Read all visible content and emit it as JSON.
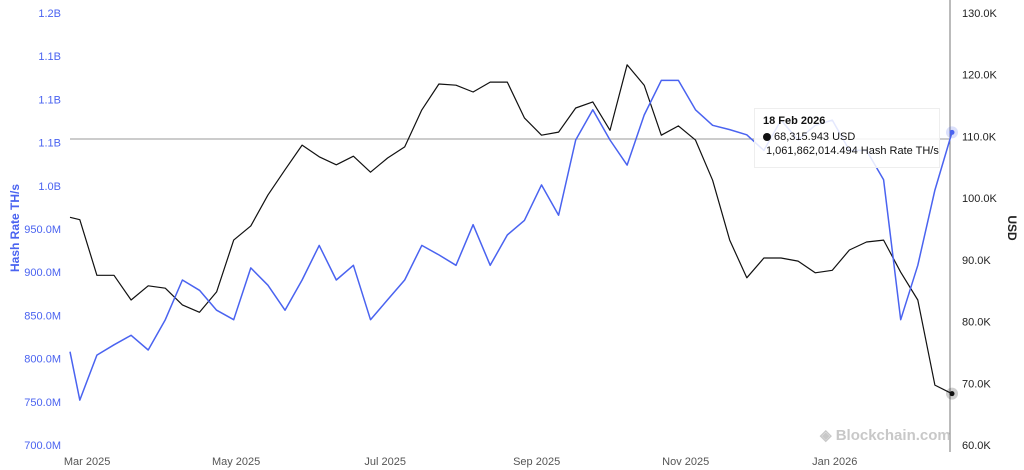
{
  "chart_data": {
    "type": "line",
    "xlabel": "",
    "ylabel_left": "Hash Rate TH/s",
    "ylabel_right": "USD",
    "x_ticks": [
      "Mar 2025",
      "May 2025",
      "Jul 2025",
      "Sep 2025",
      "Nov 2025",
      "Jan 2026"
    ],
    "y_left_ticks": [
      "700.0M",
      "750.0M",
      "800.0M",
      "850.0M",
      "900.0M",
      "950.0M",
      "1.0B",
      "1.1B",
      "1.1B",
      "1.1B",
      "1.2B"
    ],
    "y_left_range": [
      700000000,
      1200000000
    ],
    "y_right_ticks": [
      "60.0K",
      "70.0K",
      "80.0K",
      "90.0K",
      "100.0K",
      "110.0K",
      "120.0K",
      "130.0K"
    ],
    "y_right_range": [
      60000,
      130000
    ],
    "x_range": [
      "2025-02-22",
      "2026-02-18"
    ],
    "grid": false,
    "legend": "none",
    "series": [
      {
        "key": "price",
        "axis": "right",
        "color": "#111111",
        "x": [
          "2025-02-22",
          "2025-02-26",
          "2025-03-05",
          "2025-03-12",
          "2025-03-19",
          "2025-03-26",
          "2025-04-02",
          "2025-04-09",
          "2025-04-16",
          "2025-04-23",
          "2025-04-30",
          "2025-05-07",
          "2025-05-14",
          "2025-05-21",
          "2025-05-28",
          "2025-06-04",
          "2025-06-11",
          "2025-06-18",
          "2025-06-25",
          "2025-07-02",
          "2025-07-09",
          "2025-07-16",
          "2025-07-23",
          "2025-07-30",
          "2025-08-06",
          "2025-08-13",
          "2025-08-20",
          "2025-08-27",
          "2025-09-03",
          "2025-09-10",
          "2025-09-17",
          "2025-09-24",
          "2025-10-01",
          "2025-10-08",
          "2025-10-15",
          "2025-10-22",
          "2025-10-29",
          "2025-11-05",
          "2025-11-12",
          "2025-11-19",
          "2025-11-26",
          "2025-12-03",
          "2025-12-10",
          "2025-12-17",
          "2025-12-24",
          "2025-12-31",
          "2026-01-07",
          "2026-01-14",
          "2026-01-21",
          "2026-01-28",
          "2026-02-04",
          "2026-02-11",
          "2026-02-18"
        ],
        "values": [
          96900,
          96500,
          87500,
          87500,
          83500,
          85800,
          85400,
          82700,
          81500,
          84800,
          93200,
          95500,
          100500,
          104600,
          108600,
          106700,
          105400,
          106800,
          104200,
          106500,
          108300,
          114300,
          118500,
          118300,
          117200,
          118800,
          118800,
          113000,
          110200,
          110700,
          114600,
          115600,
          111000,
          121600,
          118300,
          110200,
          111700,
          109400,
          102900,
          93200,
          87100,
          90300,
          90300,
          89800,
          87900,
          88300,
          91600,
          92900,
          93200,
          88000,
          83500,
          69700,
          68315.943
        ]
      },
      {
        "key": "hashrate",
        "axis": "left",
        "color": "#4a63f0",
        "x": [
          "2025-02-22",
          "2025-02-26",
          "2025-03-05",
          "2025-03-12",
          "2025-03-19",
          "2025-03-26",
          "2025-04-02",
          "2025-04-09",
          "2025-04-16",
          "2025-04-23",
          "2025-04-30",
          "2025-05-07",
          "2025-05-14",
          "2025-05-21",
          "2025-05-28",
          "2025-06-04",
          "2025-06-11",
          "2025-06-18",
          "2025-06-25",
          "2025-07-02",
          "2025-07-09",
          "2025-07-16",
          "2025-07-23",
          "2025-07-30",
          "2025-08-06",
          "2025-08-13",
          "2025-08-20",
          "2025-08-27",
          "2025-09-03",
          "2025-09-10",
          "2025-09-17",
          "2025-09-24",
          "2025-10-01",
          "2025-10-08",
          "2025-10-15",
          "2025-10-22",
          "2025-10-29",
          "2025-11-05",
          "2025-11-12",
          "2025-11-19",
          "2025-11-26",
          "2025-12-03",
          "2025-12-10",
          "2025-12-17",
          "2025-12-24",
          "2025-12-31",
          "2026-01-07",
          "2026-01-14",
          "2026-01-21",
          "2026-01-28",
          "2026-02-04",
          "2026-02-11",
          "2026-02-18"
        ],
        "values": [
          808000000,
          752000000,
          804000000,
          816000000,
          827000000,
          810000000,
          845000000,
          891000000,
          879000000,
          856000000,
          845000000,
          905000000,
          885000000,
          856000000,
          891000000,
          931000000,
          891000000,
          908000000,
          845000000,
          868000000,
          891000000,
          931000000,
          920000000,
          908000000,
          955000000,
          908000000,
          943000000,
          960000000,
          1001000000,
          966000000,
          1053000000,
          1088000000,
          1053000000,
          1024000000,
          1082000000,
          1122000000,
          1122000000,
          1088000000,
          1070000000,
          1065000000,
          1059000000,
          1041000000,
          1076000000,
          1053000000,
          1070000000,
          1076000000,
          1041000000,
          1041000000,
          1007000000,
          845000000,
          908000000,
          995000000,
          1061862014.494
        ]
      }
    ]
  },
  "tooltip": {
    "date": "18 Feb 2026",
    "price_text": "68,315.943 USD",
    "hashrate_text": "1,061,862,014.494 Hash Rate TH/s"
  },
  "watermark": "Blockchain.com"
}
